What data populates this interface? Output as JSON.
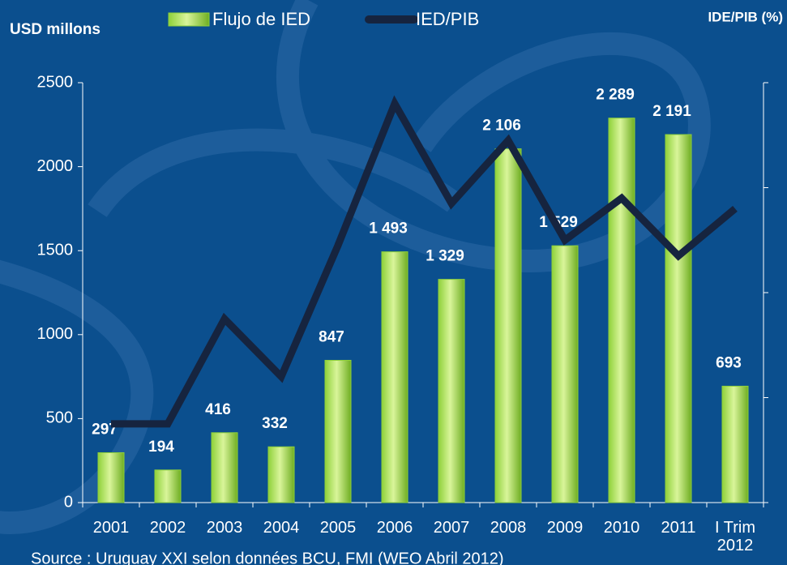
{
  "chart_data": {
    "type": "bar",
    "y_label": "USD millons",
    "y2_label": "IDE/PIB (%)",
    "source": "Source : Uruguay XXI selon données BCU, FMI (WEO Abril 2012)",
    "categories": [
      "2001",
      "2002",
      "2003",
      "2004",
      "2005",
      "2006",
      "2007",
      "2008",
      "2009",
      "2010",
      "2011",
      "I Trim 2012"
    ],
    "series": [
      {
        "name": "Flujo de IED",
        "type": "bar",
        "color": "#8fd13a",
        "values": [
          297,
          194,
          416,
          332,
          847,
          1493,
          1329,
          2106,
          1529,
          2289,
          2191,
          693
        ],
        "value_labels": [
          "297",
          "194",
          "416",
          "332",
          "847",
          "1 493",
          "1 329",
          "2 106",
          "1 529",
          "2 289",
          "2 191",
          "693"
        ]
      },
      {
        "name": "IED/PIB",
        "type": "line",
        "axis": "y2",
        "color": "#16243f",
        "values": [
          1.5,
          1.5,
          3.5,
          2.4,
          4.9,
          7.6,
          5.7,
          6.9,
          5.0,
          5.8,
          4.7,
          5.6
        ]
      }
    ],
    "ylim": [
      0,
      2500
    ],
    "yticks": [
      0,
      500,
      1000,
      1500,
      2000,
      2500
    ],
    "y2lim": [
      0,
      8
    ],
    "y2ticks": [
      0,
      2,
      4,
      6,
      8
    ]
  }
}
